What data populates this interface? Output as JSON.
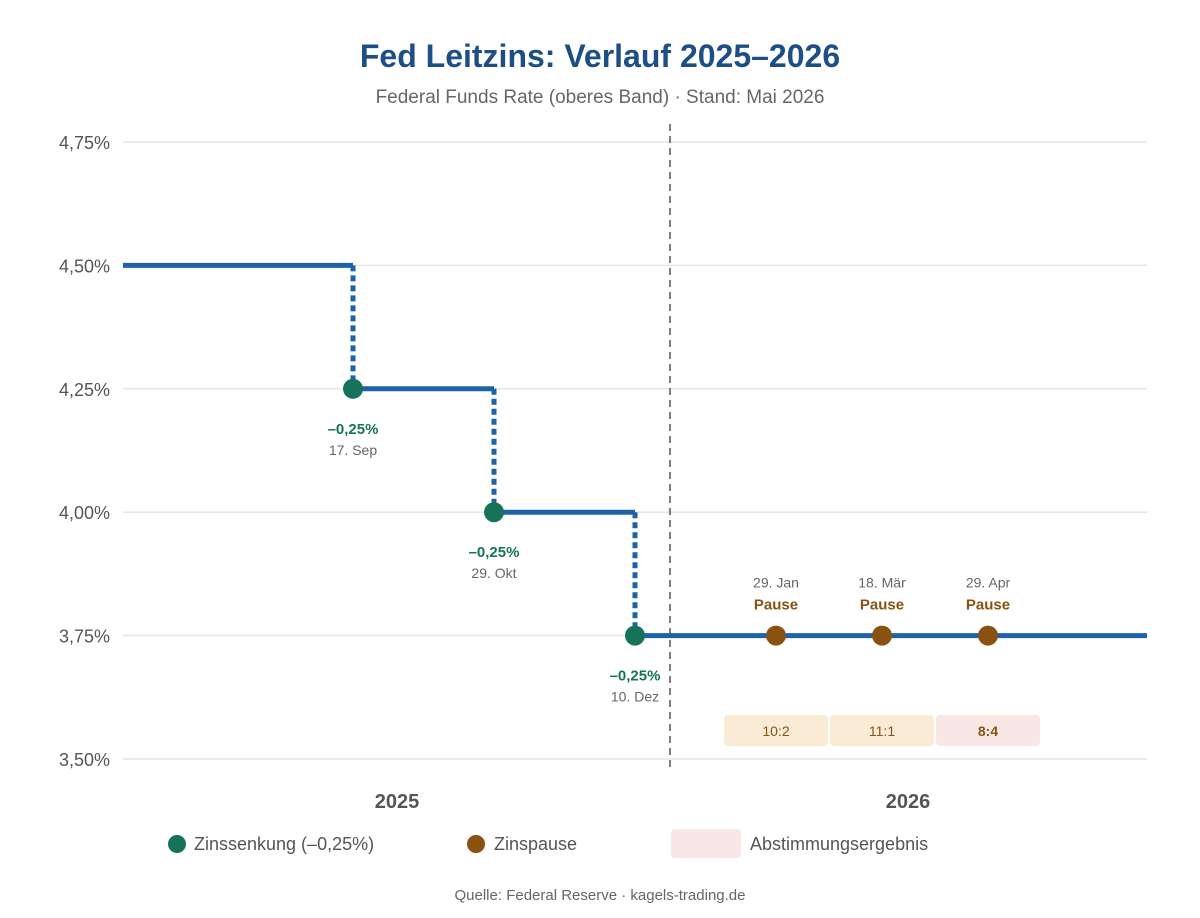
{
  "colors": {
    "title": "#1d4f86",
    "line": "#1e63a8",
    "cut": "#16735a",
    "pause": "#8a5210",
    "vote_bg": "#faebd7",
    "vote_bg_last": "#f8e7e4",
    "grid": "#e6e6e6",
    "divider": "#555555",
    "text": "#555555",
    "muted": "#666666"
  },
  "chart_data": {
    "type": "line",
    "title": "Fed Leitzins: Verlauf 2025–2026",
    "subtitle": "Federal Funds Rate (oberes Band) · Stand: Mai 2026",
    "ylim": [
      3.5,
      4.75
    ],
    "y_ticks": [
      {
        "value": 4.75,
        "label": "4,75%"
      },
      {
        "value": 4.5,
        "label": "4,50%"
      },
      {
        "value": 4.25,
        "label": "4,25%"
      },
      {
        "value": 4.0,
        "label": "4,00%"
      },
      {
        "value": 3.75,
        "label": "3,75%"
      },
      {
        "value": 3.5,
        "label": "3,50%"
      }
    ],
    "grid": "horizontal",
    "step_series": {
      "start_value": 4.5,
      "end_value": 3.75
    },
    "periods": [
      {
        "label": "2025"
      },
      {
        "label": "2026"
      }
    ],
    "events": [
      {
        "type": "cut",
        "date": "17. Sep",
        "change": "–0,25%",
        "value_before": 4.5,
        "value": 4.25
      },
      {
        "type": "cut",
        "date": "29. Okt",
        "change": "–0,25%",
        "value_before": 4.25,
        "value": 4.0
      },
      {
        "type": "cut",
        "date": "10. Dez",
        "change": "–0,25%",
        "value_before": 4.0,
        "value": 3.75
      },
      {
        "type": "pause",
        "date": "29. Jan",
        "label": "Pause",
        "value": 3.75,
        "vote": "10:2"
      },
      {
        "type": "pause",
        "date": "18. Mär",
        "label": "Pause",
        "value": 3.75,
        "vote": "11:1"
      },
      {
        "type": "pause",
        "date": "29. Apr",
        "label": "Pause",
        "value": 3.75,
        "vote": "8:4"
      }
    ],
    "legend": [
      {
        "key": "cut",
        "label": "Zinssenkung (–0,25%)"
      },
      {
        "key": "pause",
        "label": "Zinspause"
      },
      {
        "key": "vote",
        "label": "Abstimmungsergebnis"
      }
    ],
    "source": "Quelle: Federal Reserve · kagels-trading.de"
  }
}
